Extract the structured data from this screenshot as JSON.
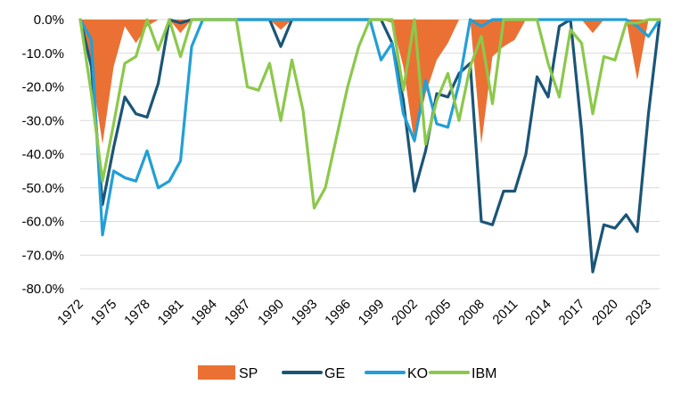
{
  "chart_data": {
    "type": "line",
    "x": [
      1972,
      1973,
      1974,
      1975,
      1976,
      1977,
      1978,
      1979,
      1980,
      1981,
      1982,
      1983,
      1984,
      1985,
      1986,
      1987,
      1988,
      1989,
      1990,
      1991,
      1992,
      1993,
      1994,
      1995,
      1996,
      1997,
      1998,
      1999,
      2000,
      2001,
      2002,
      2003,
      2004,
      2005,
      2006,
      2007,
      2008,
      2009,
      2010,
      2011,
      2012,
      2013,
      2014,
      2015,
      2016,
      2017,
      2018,
      2019,
      2020,
      2021,
      2022,
      2023,
      2024
    ],
    "x_tick_labels": [
      "1972",
      "1975",
      "1978",
      "1981",
      "1984",
      "1987",
      "1990",
      "1993",
      "1996",
      "1999",
      "2002",
      "2005",
      "2008",
      "2011",
      "2014",
      "2017",
      "2020",
      "2023"
    ],
    "y_tick_labels": [
      "0.0%",
      "-10.0%",
      "-20.0%",
      "-30.0%",
      "-40.0%",
      "-50.0%",
      "-60.0%",
      "-70.0%",
      "-80.0%"
    ],
    "ylim": [
      -80,
      0
    ],
    "grid": true,
    "legend_position": "bottom",
    "series": [
      {
        "name": "SP",
        "kind": "area",
        "color": "#ea7133",
        "values": [
          0,
          -15,
          -37,
          -14,
          -2,
          -7,
          -2,
          0,
          0,
          -4,
          0,
          0,
          0,
          0,
          0,
          0,
          0,
          0,
          -3,
          0,
          0,
          0,
          0,
          0,
          0,
          0,
          0,
          0,
          -1,
          -14,
          -37,
          -22,
          -12,
          -7,
          0,
          0,
          -37,
          -11,
          -8,
          -6,
          0,
          0,
          0,
          0,
          0,
          0,
          -4,
          0,
          0,
          0,
          -18,
          0,
          0
        ]
      },
      {
        "name": "GE",
        "kind": "line",
        "color": "#1b5577",
        "values": [
          0,
          -14,
          -55,
          -38,
          -23,
          -28,
          -29,
          -19,
          0,
          -1,
          0,
          0,
          0,
          0,
          0,
          0,
          0,
          0,
          -8,
          0,
          0,
          0,
          0,
          0,
          0,
          0,
          0,
          0,
          -7,
          -24,
          -51,
          -39,
          -22,
          -23,
          -16,
          -13,
          -60,
          -61,
          -51,
          -51,
          -40,
          -17,
          -23,
          -2,
          0,
          -33,
          -75,
          -61,
          -62,
          -58,
          -63,
          -28,
          0
        ]
      },
      {
        "name": "KO",
        "kind": "line",
        "color": "#229fd6",
        "values": [
          0,
          -6,
          -64,
          -45,
          -47,
          -48,
          -39,
          -50,
          -48,
          -42,
          -8,
          0,
          0,
          0,
          0,
          0,
          0,
          0,
          0,
          0,
          0,
          0,
          0,
          0,
          0,
          0,
          0,
          -12,
          -7,
          -28,
          -36,
          -18,
          -31,
          -32,
          -19,
          0,
          -2,
          0,
          0,
          0,
          0,
          0,
          0,
          0,
          0,
          0,
          0,
          0,
          0,
          0,
          -2,
          -5,
          0
        ]
      },
      {
        "name": "IBM",
        "kind": "line",
        "color": "#8cc84b",
        "values": [
          0,
          -22,
          -48,
          -31,
          -13,
          -11,
          0,
          -9,
          0,
          -11,
          0,
          0,
          0,
          0,
          0,
          -20,
          -21,
          -13,
          -30,
          -12,
          -27,
          -56,
          -50,
          -35,
          -20,
          -8,
          0,
          0,
          0,
          -21,
          0,
          -37,
          -24,
          -16,
          -30,
          -14,
          -5,
          -25,
          0,
          0,
          0,
          0,
          -13,
          -23,
          -3,
          -7,
          -28,
          -11,
          -12,
          -1,
          -1,
          0,
          0
        ]
      }
    ]
  }
}
